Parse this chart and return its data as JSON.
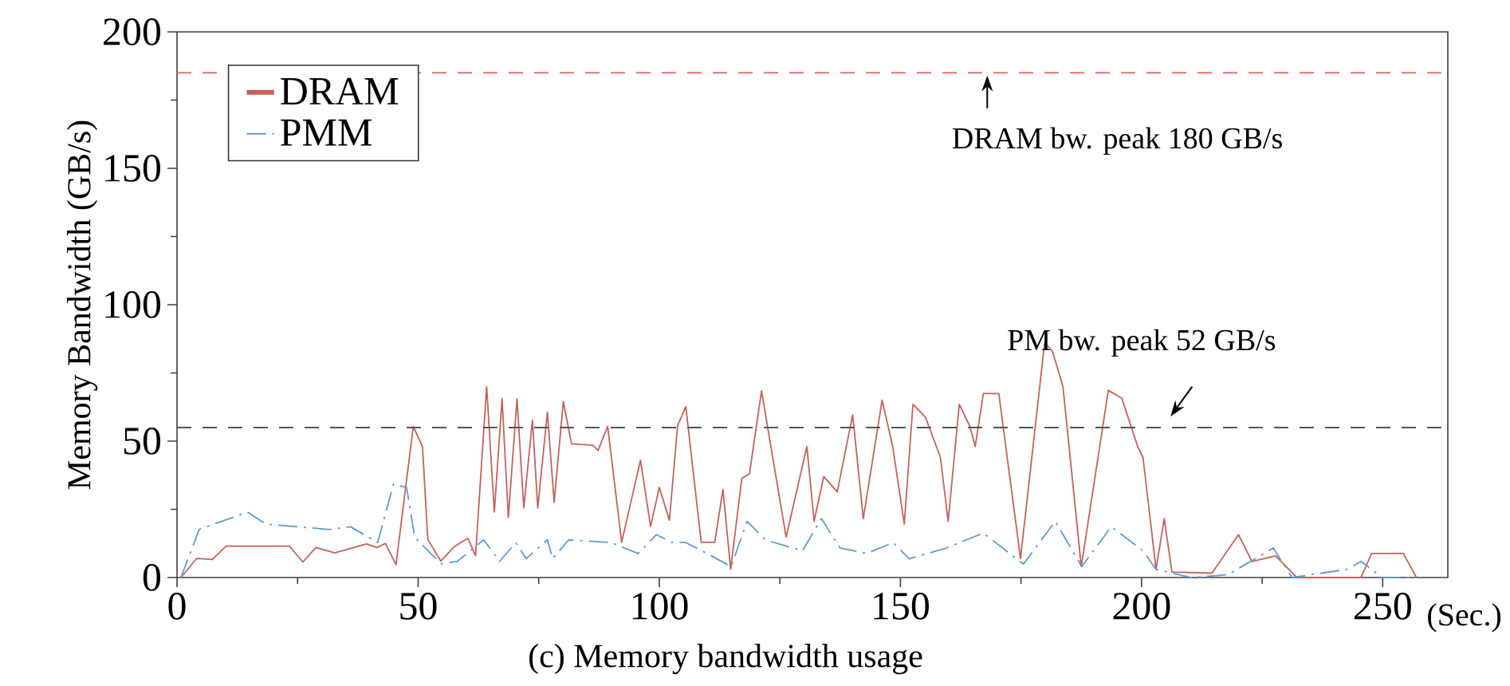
{
  "chart_data": {
    "type": "line",
    "ylabel": "Memory Bandwidth (GB/s)",
    "xlabel": "(Sec.)",
    "annotations": [
      "(c) Memory bandwidth usage"
    ],
    "xlim": [
      0,
      263.5
    ],
    "xticks": [
      0,
      50,
      100,
      150,
      200,
      250
    ],
    "ylim": [
      0,
      200
    ],
    "yticks": [
      0,
      50,
      100,
      150,
      200
    ],
    "grid": false,
    "legend": "top left",
    "series": [
      {
        "name": "DRAM",
        "color": "#c8605a",
        "line_style": "solid",
        "x": [
          0.8,
          4.1,
          7.3,
          10.2,
          23.3,
          26.1,
          28.8,
          32.7,
          39.3,
          41.5,
          43.2,
          45.4,
          49.0,
          50.9,
          52.0,
          54.7,
          57.5,
          60.3,
          61.9,
          64.2,
          65.8,
          67.4,
          68.7,
          70.5,
          71.9,
          73.7,
          74.8,
          76.8,
          78.2,
          80.1,
          81.8,
          86.2,
          87.3,
          89.3,
          92.2,
          96.1,
          98.2,
          100.0,
          102.1,
          103.8,
          105.5,
          108.7,
          111.5,
          113.2,
          114.8,
          117.1,
          118.7,
          121.2,
          126.3,
          130.6,
          132.1,
          134.1,
          136.9,
          140.1,
          142.3,
          146.2,
          148.4,
          150.8,
          152.6,
          155.2,
          158.3,
          159.9,
          162.2,
          164.4,
          165.5,
          167.2,
          170.4,
          174.9,
          179.9,
          181.5,
          183.7,
          187.5,
          193.1,
          195.9,
          199.2,
          200.3,
          203.0,
          204.7,
          206.3,
          214.6,
          220.1,
          222.9,
          227.8,
          232.2,
          245.5,
          247.7,
          254.3,
          257.0
        ],
        "values": [
          0,
          7,
          6.6,
          11.5,
          11.5,
          5.7,
          11,
          9,
          12.3,
          11,
          12.5,
          4.7,
          55.4,
          48,
          14,
          6,
          11.3,
          14.4,
          8,
          70,
          24,
          65.5,
          22,
          65.5,
          25.5,
          57.7,
          25.5,
          60.6,
          27.5,
          64.5,
          49,
          48.5,
          46.6,
          55.4,
          12.9,
          43,
          18.7,
          33,
          21,
          55.7,
          62.6,
          12.9,
          12.9,
          32.3,
          3,
          36.3,
          38,
          68.4,
          14.8,
          48,
          20.6,
          37,
          31.4,
          59.6,
          21.6,
          65,
          48,
          19.6,
          63.5,
          58.7,
          44,
          20.6,
          63.5,
          55.4,
          48,
          67.4,
          67.4,
          7,
          86,
          83,
          70,
          4,
          68.6,
          65.7,
          48,
          44,
          3,
          21.6,
          2,
          1.6,
          15.7,
          5.9,
          7.9,
          0,
          0,
          8.8,
          8.8,
          0
        ]
      },
      {
        "name": "PMM",
        "color": "#5b9bd5",
        "line_style": "dashdot",
        "x": [
          0.8,
          4.6,
          14.6,
          18.4,
          31.6,
          36.0,
          41.6,
          44.9,
          47.6,
          49.3,
          54.8,
          58.1,
          63.6,
          66.9,
          70.2,
          72.4,
          76.8,
          77.9,
          81.2,
          90.0,
          95.6,
          99.4,
          102.7,
          105.5,
          109.9,
          114.9,
          118.2,
          122.0,
          129.7,
          133.6,
          137.5,
          143.0,
          148.5,
          151.8,
          159.5,
          167.2,
          175.5,
          182.1,
          187.6,
          193.7,
          200.3,
          203.0,
          210.2,
          217.9,
          227.3,
          231.2,
          242.7,
          245.5,
          249.9,
          257.0
        ],
        "values": [
          0,
          17.6,
          24,
          19.6,
          17.6,
          18.6,
          12.8,
          34.3,
          33,
          14.7,
          5,
          5.9,
          13.8,
          5.9,
          12.8,
          6.9,
          13.8,
          6.9,
          13.8,
          12.8,
          8.8,
          15.7,
          12.8,
          12.8,
          8.8,
          4,
          20.6,
          13.8,
          9.8,
          21.6,
          10.8,
          8.8,
          12.8,
          6.9,
          10.8,
          16.3,
          4.9,
          20.6,
          4,
          18.6,
          9.8,
          3,
          0,
          1,
          10.8,
          0,
          3,
          5.9,
          0,
          0
        ]
      }
    ],
    "ref_lines": [
      {
        "axis": "y",
        "value": 185,
        "label": "DRAM bw. peak 180 GB/s",
        "color": "#e87070",
        "line_style": "dashed"
      },
      {
        "axis": "y",
        "value": 55,
        "label": "PM bw. peak 52 GB/s",
        "color": "#555555",
        "line_style": "dashed"
      }
    ]
  }
}
